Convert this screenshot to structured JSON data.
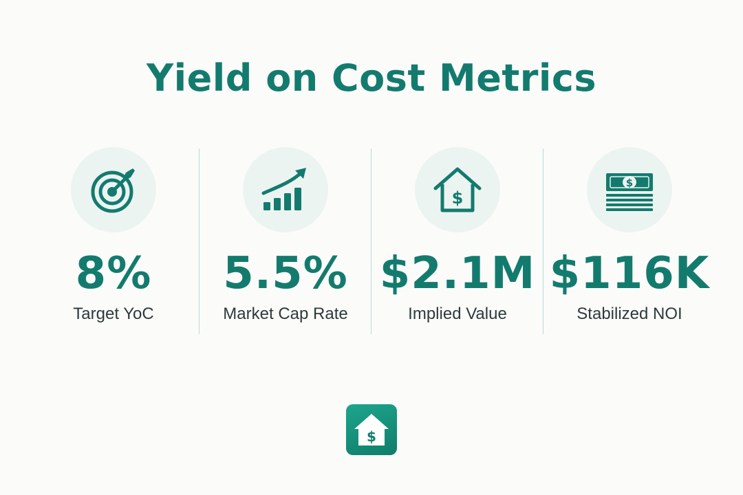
{
  "header": {
    "title": "Yield on Cost Metrics"
  },
  "metrics": [
    {
      "value": "8%",
      "label": "Target YoC",
      "icon": "target-icon"
    },
    {
      "value": "5.5%",
      "label": "Market Cap Rate",
      "icon": "growth-chart-icon"
    },
    {
      "value": "$2.1M",
      "label": "Implied Value",
      "icon": "house-dollar-icon"
    },
    {
      "value": "$116K",
      "label": "Stabilized NOI",
      "icon": "cash-stack-icon"
    }
  ],
  "footer": {
    "logo_icon": "house-dollar-logo-icon"
  },
  "colors": {
    "accent": "#137b6e",
    "icon_background": "#ecf4f2",
    "label_text": "#2d3a3a",
    "divider": "#b9dcd6",
    "background": "#fbfbfa"
  }
}
